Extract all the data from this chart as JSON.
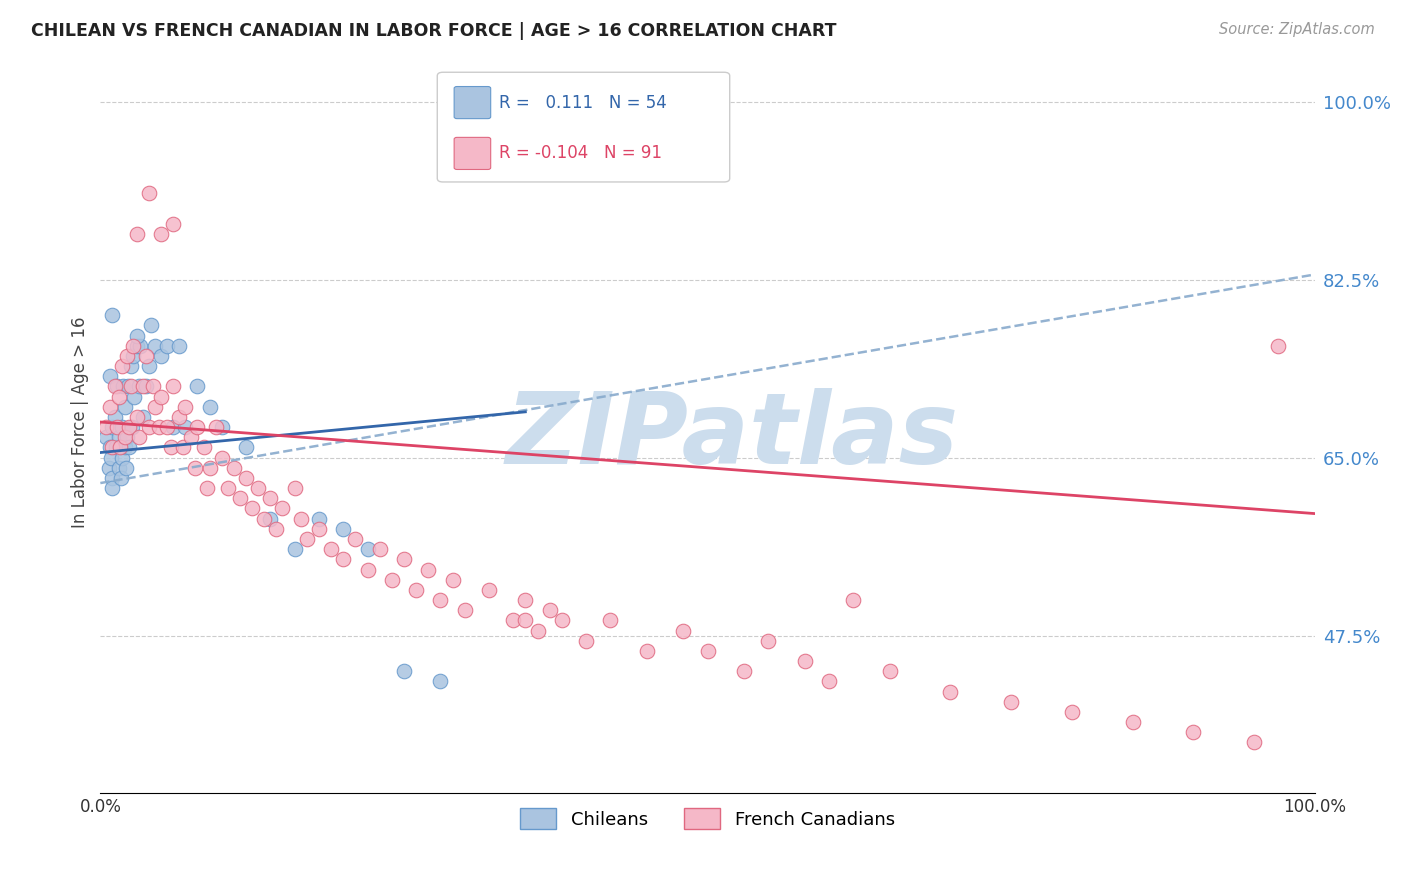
{
  "title": "CHILEAN VS FRENCH CANADIAN IN LABOR FORCE | AGE > 16 CORRELATION CHART",
  "source": "Source: ZipAtlas.com",
  "ylabel": "In Labor Force | Age > 16",
  "xlim": [
    0.0,
    1.0
  ],
  "ylim": [
    0.32,
    1.05
  ],
  "yticks": [
    0.475,
    0.65,
    0.825,
    1.0
  ],
  "ytick_labels": [
    "47.5%",
    "65.0%",
    "82.5%",
    "100.0%"
  ],
  "xticks": [
    0.0,
    0.2,
    0.4,
    0.6,
    0.8,
    1.0
  ],
  "xtick_labels": [
    "0.0%",
    "",
    "",
    "",
    "",
    "100.0%"
  ],
  "chilean_R": 0.111,
  "chilean_N": 54,
  "french_R": -0.104,
  "french_N": 91,
  "chilean_color": "#aac4e0",
  "chilean_edge": "#6699cc",
  "french_color": "#f5b8c8",
  "french_edge": "#e06880",
  "trend_chilean_color": "#3366aa",
  "trend_french_color": "#dd4466",
  "dashed_color": "#88aacc",
  "watermark": "ZIPatlas",
  "watermark_color": "#ccdded",
  "chilean_x": [
    0.005,
    0.007,
    0.008,
    0.008,
    0.009,
    0.01,
    0.01,
    0.01,
    0.012,
    0.013,
    0.014,
    0.015,
    0.015,
    0.016,
    0.017,
    0.018,
    0.018,
    0.019,
    0.02,
    0.02,
    0.021,
    0.022,
    0.023,
    0.024,
    0.025,
    0.026,
    0.027,
    0.028,
    0.03,
    0.032,
    0.033,
    0.035,
    0.038,
    0.04,
    0.042,
    0.045,
    0.05,
    0.055,
    0.06,
    0.065,
    0.07,
    0.08,
    0.09,
    0.1,
    0.12,
    0.14,
    0.16,
    0.18,
    0.2,
    0.22,
    0.25,
    0.28,
    0.01,
    0.03
  ],
  "chilean_y": [
    0.67,
    0.64,
    0.73,
    0.66,
    0.65,
    0.68,
    0.63,
    0.62,
    0.69,
    0.66,
    0.72,
    0.67,
    0.64,
    0.66,
    0.63,
    0.68,
    0.65,
    0.72,
    0.66,
    0.7,
    0.64,
    0.67,
    0.72,
    0.66,
    0.74,
    0.68,
    0.75,
    0.71,
    0.76,
    0.72,
    0.76,
    0.69,
    0.72,
    0.74,
    0.78,
    0.76,
    0.75,
    0.76,
    0.68,
    0.76,
    0.68,
    0.72,
    0.7,
    0.68,
    0.66,
    0.59,
    0.56,
    0.59,
    0.58,
    0.56,
    0.44,
    0.43,
    0.79,
    0.77
  ],
  "french_x": [
    0.005,
    0.008,
    0.01,
    0.012,
    0.014,
    0.015,
    0.016,
    0.018,
    0.02,
    0.022,
    0.024,
    0.025,
    0.027,
    0.03,
    0.032,
    0.035,
    0.038,
    0.04,
    0.043,
    0.045,
    0.048,
    0.05,
    0.055,
    0.058,
    0.06,
    0.065,
    0.068,
    0.07,
    0.075,
    0.078,
    0.08,
    0.085,
    0.088,
    0.09,
    0.095,
    0.1,
    0.105,
    0.11,
    0.115,
    0.12,
    0.125,
    0.13,
    0.135,
    0.14,
    0.145,
    0.15,
    0.16,
    0.165,
    0.17,
    0.18,
    0.19,
    0.2,
    0.21,
    0.22,
    0.23,
    0.24,
    0.25,
    0.26,
    0.27,
    0.28,
    0.29,
    0.3,
    0.32,
    0.34,
    0.35,
    0.38,
    0.4,
    0.42,
    0.45,
    0.48,
    0.5,
    0.53,
    0.55,
    0.58,
    0.6,
    0.65,
    0.7,
    0.75,
    0.8,
    0.85,
    0.9,
    0.95,
    0.03,
    0.04,
    0.05,
    0.06,
    0.35,
    0.36,
    0.37,
    0.62,
    0.97
  ],
  "french_y": [
    0.68,
    0.7,
    0.66,
    0.72,
    0.68,
    0.71,
    0.66,
    0.74,
    0.67,
    0.75,
    0.68,
    0.72,
    0.76,
    0.69,
    0.67,
    0.72,
    0.75,
    0.68,
    0.72,
    0.7,
    0.68,
    0.71,
    0.68,
    0.66,
    0.72,
    0.69,
    0.66,
    0.7,
    0.67,
    0.64,
    0.68,
    0.66,
    0.62,
    0.64,
    0.68,
    0.65,
    0.62,
    0.64,
    0.61,
    0.63,
    0.6,
    0.62,
    0.59,
    0.61,
    0.58,
    0.6,
    0.62,
    0.59,
    0.57,
    0.58,
    0.56,
    0.55,
    0.57,
    0.54,
    0.56,
    0.53,
    0.55,
    0.52,
    0.54,
    0.51,
    0.53,
    0.5,
    0.52,
    0.49,
    0.51,
    0.49,
    0.47,
    0.49,
    0.46,
    0.48,
    0.46,
    0.44,
    0.47,
    0.45,
    0.43,
    0.44,
    0.42,
    0.41,
    0.4,
    0.39,
    0.38,
    0.37,
    0.87,
    0.91,
    0.87,
    0.88,
    0.49,
    0.48,
    0.5,
    0.51,
    0.76
  ]
}
